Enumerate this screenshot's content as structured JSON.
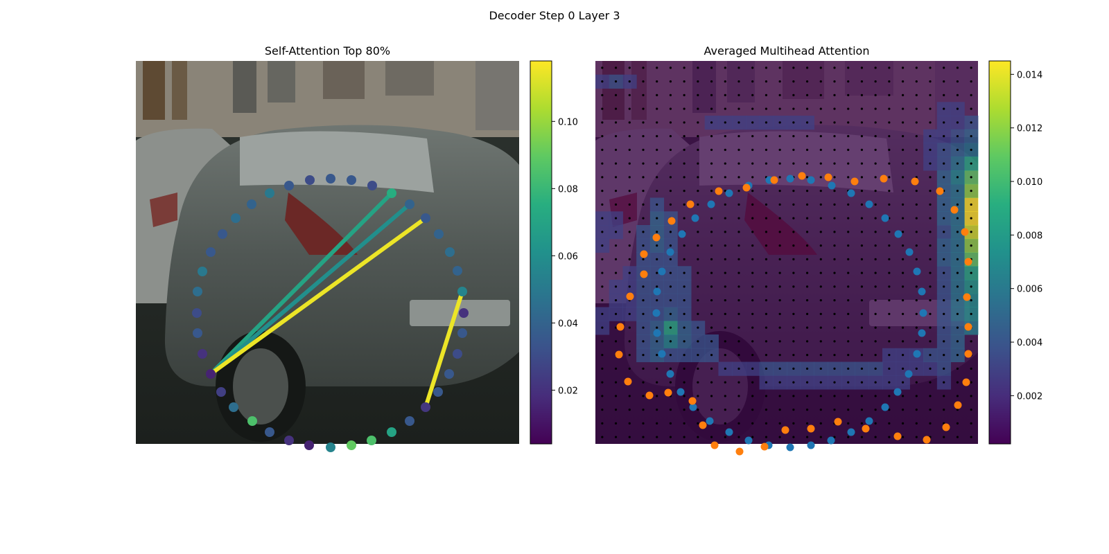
{
  "figure": {
    "suptitle": "Decoder Step 0 Layer 3"
  },
  "chart_data": [
    {
      "type": "scatter",
      "title": "Self-Attention Top 80%",
      "background": "street scene photograph, grey hatchback car",
      "colormap": "viridis",
      "colorbar": {
        "ticks": [
          0.02,
          0.04,
          0.06,
          0.08,
          0.1
        ],
        "tick_labels": [
          "0.02",
          "0.04",
          "0.06",
          "0.08",
          "0.10"
        ],
        "range": [
          0.004,
          0.118
        ]
      },
      "axes": "off",
      "points": [
        [
          108,
          452,
          0.015
        ],
        [
          123,
          478,
          0.025
        ],
        [
          141,
          500,
          0.045
        ],
        [
          168,
          520,
          0.085
        ],
        [
          193,
          536,
          0.035
        ],
        [
          221,
          548,
          0.02
        ],
        [
          250,
          555,
          0.015
        ],
        [
          281,
          558,
          0.055
        ],
        [
          311,
          555,
          0.09
        ],
        [
          340,
          548,
          0.085
        ],
        [
          369,
          536,
          0.07
        ],
        [
          395,
          520,
          0.035
        ],
        [
          418,
          500,
          0.022
        ],
        [
          436,
          478,
          0.035
        ],
        [
          452,
          452,
          0.035
        ],
        [
          464,
          423,
          0.03
        ],
        [
          471,
          393,
          0.035
        ],
        [
          473,
          364,
          0.02
        ],
        [
          471,
          333,
          0.055
        ],
        [
          464,
          303,
          0.04
        ],
        [
          453,
          276,
          0.045
        ],
        [
          437,
          250,
          0.04
        ],
        [
          418,
          227,
          0.035
        ],
        [
          395,
          207,
          0.04
        ],
        [
          369,
          191,
          0.075
        ],
        [
          341,
          180,
          0.03
        ],
        [
          311,
          172,
          0.035
        ],
        [
          281,
          170,
          0.035
        ],
        [
          251,
          172,
          0.03
        ],
        [
          221,
          180,
          0.035
        ],
        [
          193,
          191,
          0.05
        ],
        [
          167,
          207,
          0.04
        ],
        [
          144,
          227,
          0.045
        ],
        [
          125,
          250,
          0.035
        ],
        [
          108,
          276,
          0.035
        ],
        [
          96,
          304,
          0.05
        ],
        [
          89,
          333,
          0.045
        ],
        [
          88,
          364,
          0.03
        ],
        [
          89,
          393,
          0.035
        ],
        [
          96,
          423,
          0.02
        ]
      ],
      "lines": [
        {
          "from": 0,
          "to": 24,
          "value": 0.07
        },
        {
          "from": 0,
          "to": 23,
          "value": 0.06
        },
        {
          "from": 0,
          "to": 22,
          "value": 0.115
        },
        {
          "from": 12,
          "to": 18,
          "value": 0.115
        }
      ]
    },
    {
      "type": "heatmap",
      "title": "Averaged Multihead Attention",
      "background": "street scene photograph with attention heatmap overlay",
      "colormap": "viridis",
      "colorbar": {
        "ticks": [
          0.002,
          0.004,
          0.006,
          0.008,
          0.01,
          0.012,
          0.014
        ],
        "tick_labels": [
          "0.002",
          "0.004",
          "0.006",
          "0.008",
          "0.010",
          "0.012",
          "0.014"
        ],
        "range": [
          0.0002,
          0.0145
        ]
      },
      "axes": "off",
      "grid_dots": {
        "rows": 28,
        "cols": 28
      },
      "hot_cells": [
        [
          27,
          10,
          0.0145
        ],
        [
          27,
          11,
          0.0145
        ],
        [
          27,
          12,
          0.0135
        ],
        [
          27,
          13,
          0.012
        ],
        [
          27,
          9,
          0.012
        ],
        [
          27,
          8,
          0.011
        ],
        [
          27,
          14,
          0.011
        ],
        [
          27,
          15,
          0.009
        ],
        [
          27,
          16,
          0.008
        ],
        [
          27,
          17,
          0.0075
        ],
        [
          27,
          18,
          0.0075
        ],
        [
          27,
          19,
          0.0065
        ],
        [
          27,
          6,
          0.006
        ],
        [
          27,
          7,
          0.009
        ],
        [
          27,
          4,
          0.004
        ],
        [
          27,
          5,
          0.005
        ],
        [
          26,
          6,
          0.005
        ],
        [
          26,
          7,
          0.006
        ],
        [
          26,
          8,
          0.007
        ],
        [
          26,
          9,
          0.006
        ],
        [
          26,
          10,
          0.006
        ],
        [
          26,
          11,
          0.006
        ],
        [
          26,
          12,
          0.006
        ],
        [
          26,
          13,
          0.006
        ],
        [
          26,
          14,
          0.006
        ],
        [
          26,
          15,
          0.006
        ],
        [
          26,
          16,
          0.006
        ],
        [
          26,
          17,
          0.006
        ],
        [
          26,
          18,
          0.006
        ],
        [
          26,
          19,
          0.005
        ],
        [
          26,
          20,
          0.005
        ],
        [
          26,
          21,
          0.005
        ],
        [
          25,
          8,
          0.005
        ],
        [
          25,
          9,
          0.005
        ],
        [
          25,
          10,
          0.005
        ],
        [
          25,
          11,
          0.005
        ],
        [
          25,
          12,
          0.004
        ],
        [
          25,
          13,
          0.005
        ],
        [
          25,
          14,
          0.005
        ],
        [
          25,
          15,
          0.004
        ],
        [
          25,
          16,
          0.004
        ],
        [
          25,
          17,
          0.004
        ],
        [
          25,
          18,
          0.004
        ],
        [
          25,
          19,
          0.004
        ],
        [
          25,
          20,
          0.004
        ],
        [
          25,
          21,
          0.004
        ],
        [
          25,
          22,
          0.004
        ],
        [
          25,
          23,
          0.003
        ],
        [
          24,
          22,
          0.003
        ],
        [
          23,
          22,
          0.003
        ],
        [
          22,
          22,
          0.003
        ],
        [
          21,
          22,
          0.003
        ],
        [
          5,
          19,
          0.009
        ],
        [
          5,
          20,
          0.007
        ],
        [
          4,
          19,
          0.005
        ],
        [
          4,
          20,
          0.005
        ],
        [
          4,
          21,
          0.005
        ],
        [
          6,
          20,
          0.005
        ],
        [
          6,
          19,
          0.005
        ],
        [
          5,
          21,
          0.004
        ],
        [
          3,
          20,
          0.004
        ],
        [
          3,
          21,
          0.004
        ],
        [
          3,
          19,
          0.004
        ],
        [
          7,
          20,
          0.004
        ],
        [
          6,
          21,
          0.004
        ],
        [
          5,
          18,
          0.005
        ],
        [
          4,
          18,
          0.004
        ],
        [
          3,
          18,
          0.004
        ],
        [
          4,
          13,
          0.005
        ],
        [
          3,
          13,
          0.004
        ],
        [
          4,
          12,
          0.005
        ],
        [
          3,
          12,
          0.004
        ],
        [
          4,
          11,
          0.005
        ],
        [
          4,
          10,
          0.004
        ],
        [
          4,
          14,
          0.004
        ],
        [
          4,
          15,
          0.004
        ],
        [
          4,
          16,
          0.004
        ],
        [
          4,
          17,
          0.004
        ],
        [
          3,
          14,
          0.004
        ],
        [
          3,
          15,
          0.004
        ],
        [
          3,
          16,
          0.004
        ],
        [
          3,
          17,
          0.004
        ],
        [
          5,
          11,
          0.004
        ],
        [
          5,
          12,
          0.004
        ],
        [
          5,
          13,
          0.004
        ],
        [
          5,
          14,
          0.004
        ],
        [
          5,
          15,
          0.004
        ],
        [
          5,
          16,
          0.004
        ],
        [
          5,
          17,
          0.004
        ],
        [
          6,
          15,
          0.004
        ],
        [
          6,
          16,
          0.004
        ],
        [
          6,
          17,
          0.004
        ],
        [
          6,
          18,
          0.004
        ],
        [
          7,
          19,
          0.004
        ],
        [
          7,
          21,
          0.004
        ],
        [
          8,
          20,
          0.004
        ],
        [
          8,
          21,
          0.004
        ],
        [
          2,
          15,
          0.003
        ],
        [
          2,
          16,
          0.003
        ],
        [
          2,
          17,
          0.003
        ],
        [
          2,
          18,
          0.003
        ],
        [
          1,
          16,
          0.003
        ],
        [
          1,
          17,
          0.003
        ],
        [
          1,
          18,
          0.003
        ],
        [
          0,
          18,
          0.003
        ],
        [
          0,
          19,
          0.003
        ],
        [
          12,
          22,
          0.004
        ],
        [
          13,
          22,
          0.004
        ],
        [
          14,
          22,
          0.004
        ],
        [
          15,
          22,
          0.004
        ],
        [
          16,
          22,
          0.004
        ],
        [
          17,
          22,
          0.004
        ],
        [
          18,
          22,
          0.004
        ],
        [
          19,
          22,
          0.004
        ],
        [
          20,
          22,
          0.004
        ],
        [
          12,
          23,
          0.003
        ],
        [
          13,
          23,
          0.003
        ],
        [
          14,
          23,
          0.003
        ],
        [
          15,
          23,
          0.003
        ],
        [
          16,
          23,
          0.003
        ],
        [
          17,
          23,
          0.003
        ],
        [
          18,
          23,
          0.003
        ],
        [
          19,
          23,
          0.003
        ],
        [
          20,
          23,
          0.003
        ],
        [
          21,
          23,
          0.003
        ],
        [
          22,
          23,
          0.003
        ],
        [
          9,
          22,
          0.003
        ],
        [
          10,
          22,
          0.003
        ],
        [
          11,
          22,
          0.003
        ],
        [
          21,
          21,
          0.003
        ],
        [
          22,
          21,
          0.003
        ],
        [
          23,
          21,
          0.003
        ],
        [
          24,
          21,
          0.004
        ],
        [
          25,
          3,
          0.003
        ],
        [
          26,
          3,
          0.003
        ],
        [
          26,
          4,
          0.003
        ],
        [
          26,
          5,
          0.004
        ],
        [
          25,
          4,
          0.003
        ],
        [
          25,
          5,
          0.003
        ],
        [
          25,
          6,
          0.004
        ],
        [
          25,
          7,
          0.004
        ],
        [
          24,
          5,
          0.003
        ],
        [
          24,
          6,
          0.003
        ],
        [
          24,
          7,
          0.003
        ],
        [
          0,
          11,
          0.003
        ],
        [
          0,
          12,
          0.003
        ],
        [
          0,
          13,
          0.003
        ],
        [
          1,
          11,
          0.003
        ],
        [
          1,
          12,
          0.003
        ],
        [
          1,
          1,
          0.004
        ],
        [
          0,
          1,
          0.003
        ],
        [
          2,
          1,
          0.003
        ],
        [
          8,
          4,
          0.003
        ],
        [
          9,
          4,
          0.003
        ],
        [
          10,
          4,
          0.003
        ],
        [
          11,
          4,
          0.003
        ],
        [
          12,
          4,
          0.003
        ],
        [
          13,
          4,
          0.003
        ],
        [
          14,
          4,
          0.003
        ],
        [
          15,
          4,
          0.003
        ]
      ],
      "points_blue": [
        [
          251,
          172
        ],
        [
          281,
          170
        ],
        [
          311,
          172
        ],
        [
          341,
          180
        ],
        [
          369,
          191
        ],
        [
          395,
          207
        ],
        [
          418,
          227
        ],
        [
          437,
          250
        ],
        [
          453,
          276
        ],
        [
          464,
          304
        ],
        [
          471,
          333
        ],
        [
          473,
          364
        ],
        [
          471,
          393
        ],
        [
          464,
          423
        ],
        [
          452,
          452
        ],
        [
          436,
          478
        ],
        [
          418,
          500
        ],
        [
          395,
          520
        ],
        [
          369,
          536
        ],
        [
          340,
          548
        ],
        [
          311,
          555
        ],
        [
          281,
          558
        ],
        [
          250,
          555
        ],
        [
          221,
          548
        ],
        [
          193,
          536
        ],
        [
          165,
          520
        ],
        [
          141,
          500
        ],
        [
          123,
          478
        ],
        [
          108,
          452
        ],
        [
          96,
          423
        ],
        [
          89,
          393
        ],
        [
          88,
          364
        ],
        [
          89,
          333
        ],
        [
          96,
          304
        ],
        [
          108,
          276
        ],
        [
          125,
          250
        ],
        [
          144,
          227
        ],
        [
          167,
          207
        ],
        [
          193,
          191
        ],
        [
          221,
          180
        ]
      ],
      "points_orange": [
        [
          258,
          172
        ],
        [
          298,
          166
        ],
        [
          336,
          168
        ],
        [
          374,
          174
        ],
        [
          416,
          170
        ],
        [
          461,
          174
        ],
        [
          497,
          188
        ],
        [
          518,
          215
        ],
        [
          533,
          247
        ],
        [
          538,
          290
        ],
        [
          536,
          341
        ],
        [
          538,
          384
        ],
        [
          538,
          423
        ],
        [
          535,
          464
        ],
        [
          523,
          497
        ],
        [
          506,
          529
        ],
        [
          478,
          547
        ],
        [
          436,
          542
        ],
        [
          390,
          531
        ],
        [
          350,
          521
        ],
        [
          311,
          531
        ],
        [
          274,
          533
        ],
        [
          244,
          557
        ],
        [
          208,
          564
        ],
        [
          172,
          555
        ],
        [
          155,
          526
        ],
        [
          140,
          491
        ],
        [
          105,
          479
        ],
        [
          78,
          483
        ],
        [
          47,
          463
        ],
        [
          34,
          424
        ],
        [
          36,
          384
        ],
        [
          50,
          340
        ],
        [
          70,
          308
        ],
        [
          70,
          279
        ],
        [
          88,
          255
        ],
        [
          110,
          231
        ],
        [
          137,
          207
        ],
        [
          178,
          188
        ],
        [
          218,
          183
        ]
      ]
    }
  ]
}
